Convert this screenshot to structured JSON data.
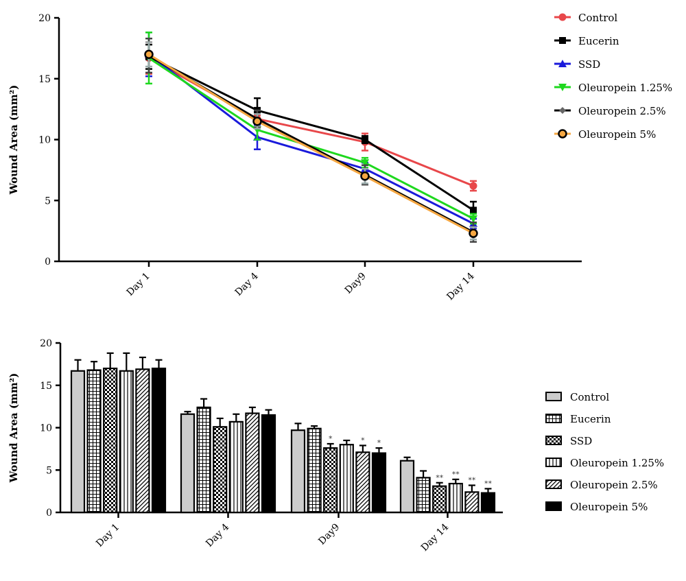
{
  "chart_data": [
    {
      "type": "line",
      "categories": [
        "Day 1",
        "Day 4",
        "Day9",
        "Day 14"
      ],
      "ylabel": "Wound Area (mm²)",
      "ylim": [
        0,
        20
      ],
      "yticks": [
        "0",
        "5",
        "10",
        "15",
        "20"
      ],
      "grid": false,
      "legend": "right",
      "series": [
        {
          "name": "Control",
          "color": "#e8474a",
          "marker": "circle",
          "values": [
            16.7,
            11.7,
            9.8,
            6.2
          ],
          "errors": [
            1.3,
            0.3,
            0.7,
            0.4
          ]
        },
        {
          "name": "Eucerin",
          "color": "#000000",
          "marker": "square",
          "values": [
            16.8,
            12.4,
            10.0,
            4.2
          ],
          "errors": [
            1.0,
            1.0,
            0.3,
            0.7
          ]
        },
        {
          "name": "SSD",
          "color": "#1a1adb",
          "marker": "triangle-up",
          "values": [
            17.0,
            10.2,
            7.6,
            3.1
          ],
          "errors": [
            1.8,
            1.0,
            0.5,
            0.4
          ]
        },
        {
          "name": "Oleuropein 1.25%",
          "color": "#1ed81e",
          "marker": "triangle-down",
          "values": [
            16.7,
            10.8,
            8.1,
            3.5
          ],
          "errors": [
            2.1,
            0.8,
            0.4,
            0.4
          ]
        },
        {
          "name": "Oleuropein 2.5%",
          "color": "#000000",
          "marker": "diamond",
          "values": [
            16.9,
            11.7,
            7.1,
            2.4
          ],
          "errors": [
            1.4,
            0.7,
            0.8,
            0.8
          ]
        },
        {
          "name": "Oleuropein 5%",
          "color": "#f5a742",
          "marker": "circle-open",
          "values": [
            17.0,
            11.5,
            7.0,
            2.3
          ],
          "errors": [
            1.0,
            0.6,
            0.6,
            0.5
          ]
        }
      ]
    },
    {
      "type": "bar",
      "categories": [
        "Day 1",
        "Day 4",
        "Day9",
        "Day 14"
      ],
      "ylabel": "Wound Area (mm²)",
      "ylim": [
        0,
        20
      ],
      "yticks": [
        "0",
        "5",
        "10",
        "15",
        "20"
      ],
      "grid": false,
      "legend": "right",
      "series": [
        {
          "name": "Control",
          "pattern": "gray",
          "values": [
            16.7,
            11.6,
            9.7,
            6.1
          ],
          "errors": [
            1.3,
            0.3,
            0.8,
            0.4
          ],
          "sig": [
            "",
            "",
            "",
            ""
          ]
        },
        {
          "name": "Eucerin",
          "pattern": "grid",
          "values": [
            16.8,
            12.4,
            9.9,
            4.1
          ],
          "errors": [
            1.0,
            1.0,
            0.3,
            0.8
          ],
          "sig": [
            "",
            "",
            "",
            ""
          ]
        },
        {
          "name": "SSD",
          "pattern": "checker",
          "values": [
            17.0,
            10.1,
            7.6,
            3.1
          ],
          "errors": [
            1.8,
            1.0,
            0.5,
            0.4
          ],
          "sig": [
            "",
            "",
            "*",
            "**"
          ]
        },
        {
          "name": "Oleuropein 1.25%",
          "pattern": "vstripe",
          "values": [
            16.7,
            10.7,
            8.0,
            3.4
          ],
          "errors": [
            2.1,
            0.9,
            0.5,
            0.5
          ],
          "sig": [
            "",
            "",
            "",
            "**"
          ]
        },
        {
          "name": "Oleuropein 2.5%",
          "pattern": "diagonal",
          "values": [
            16.9,
            11.7,
            7.1,
            2.4
          ],
          "errors": [
            1.4,
            0.7,
            0.8,
            0.8
          ],
          "sig": [
            "",
            "",
            "*",
            "**"
          ]
        },
        {
          "name": "Oleuropein 5%",
          "pattern": "black",
          "values": [
            17.0,
            11.5,
            7.0,
            2.3
          ],
          "errors": [
            1.0,
            0.6,
            0.6,
            0.5
          ],
          "sig": [
            "",
            "",
            "*",
            "**"
          ]
        }
      ]
    }
  ]
}
